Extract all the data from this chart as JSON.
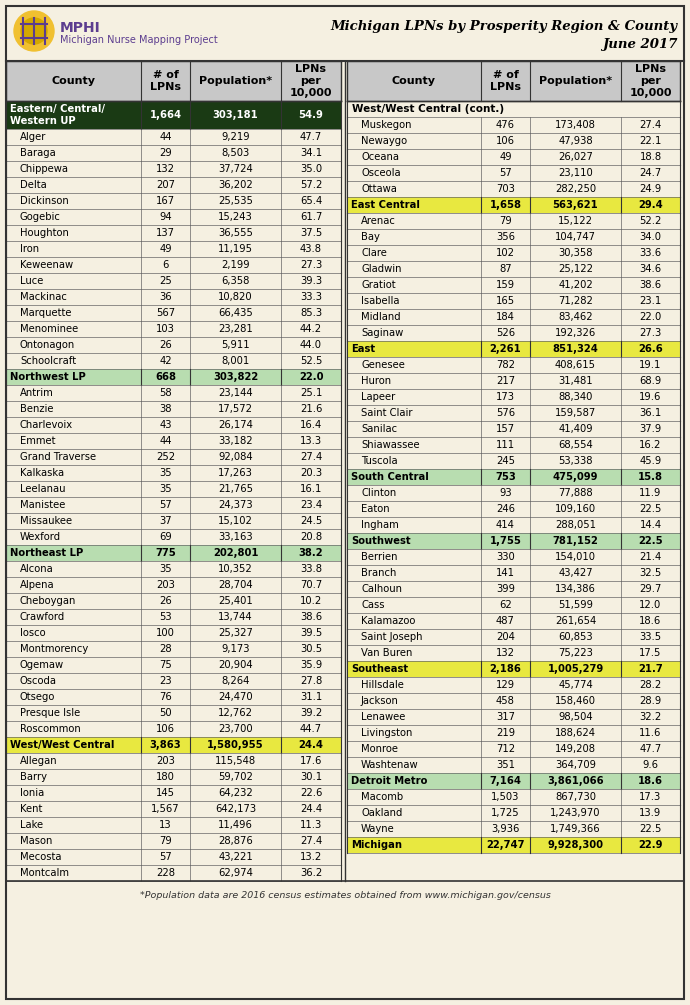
{
  "title_line1": "Michigan LPNs by Prosperity Region & County",
  "title_line2": "June 2017",
  "footer": "*Population data are 2016 census estimates obtained from www.michigan.gov/census",
  "bg_color": "#f5f0e1",
  "header_bg": "#c0c0c0",
  "dark_green": "#1a3a14",
  "light_green": "#b8ddb0",
  "yellow": "#e8e840",
  "col_header_bg": "#c8c8c8",
  "left_rows": [
    {
      "type": "region",
      "style": "dark_green",
      "county": "Eastern/ Central/\nWestern UP",
      "lpns": "1,664",
      "pop": "303,181",
      "per10k": "54.9",
      "tall": true
    },
    {
      "type": "county",
      "county": "Alger",
      "lpns": "44",
      "pop": "9,219",
      "per10k": "47.7"
    },
    {
      "type": "county",
      "county": "Baraga",
      "lpns": "29",
      "pop": "8,503",
      "per10k": "34.1"
    },
    {
      "type": "county",
      "county": "Chippewa",
      "lpns": "132",
      "pop": "37,724",
      "per10k": "35.0"
    },
    {
      "type": "county",
      "county": "Delta",
      "lpns": "207",
      "pop": "36,202",
      "per10k": "57.2"
    },
    {
      "type": "county",
      "county": "Dickinson",
      "lpns": "167",
      "pop": "25,535",
      "per10k": "65.4"
    },
    {
      "type": "county",
      "county": "Gogebic",
      "lpns": "94",
      "pop": "15,243",
      "per10k": "61.7"
    },
    {
      "type": "county",
      "county": "Houghton",
      "lpns": "137",
      "pop": "36,555",
      "per10k": "37.5"
    },
    {
      "type": "county",
      "county": "Iron",
      "lpns": "49",
      "pop": "11,195",
      "per10k": "43.8"
    },
    {
      "type": "county",
      "county": "Keweenaw",
      "lpns": "6",
      "pop": "2,199",
      "per10k": "27.3"
    },
    {
      "type": "county",
      "county": "Luce",
      "lpns": "25",
      "pop": "6,358",
      "per10k": "39.3"
    },
    {
      "type": "county",
      "county": "Mackinac",
      "lpns": "36",
      "pop": "10,820",
      "per10k": "33.3"
    },
    {
      "type": "county",
      "county": "Marquette",
      "lpns": "567",
      "pop": "66,435",
      "per10k": "85.3"
    },
    {
      "type": "county",
      "county": "Menominee",
      "lpns": "103",
      "pop": "23,281",
      "per10k": "44.2"
    },
    {
      "type": "county",
      "county": "Ontonagon",
      "lpns": "26",
      "pop": "5,911",
      "per10k": "44.0"
    },
    {
      "type": "county",
      "county": "Schoolcraft",
      "lpns": "42",
      "pop": "8,001",
      "per10k": "52.5"
    },
    {
      "type": "region",
      "style": "light_green",
      "county": "Northwest LP",
      "lpns": "668",
      "pop": "303,822",
      "per10k": "22.0"
    },
    {
      "type": "county",
      "county": "Antrim",
      "lpns": "58",
      "pop": "23,144",
      "per10k": "25.1"
    },
    {
      "type": "county",
      "county": "Benzie",
      "lpns": "38",
      "pop": "17,572",
      "per10k": "21.6"
    },
    {
      "type": "county",
      "county": "Charlevoix",
      "lpns": "43",
      "pop": "26,174",
      "per10k": "16.4"
    },
    {
      "type": "county",
      "county": "Emmet",
      "lpns": "44",
      "pop": "33,182",
      "per10k": "13.3"
    },
    {
      "type": "county",
      "county": "Grand Traverse",
      "lpns": "252",
      "pop": "92,084",
      "per10k": "27.4"
    },
    {
      "type": "county",
      "county": "Kalkaska",
      "lpns": "35",
      "pop": "17,263",
      "per10k": "20.3"
    },
    {
      "type": "county",
      "county": "Leelanau",
      "lpns": "35",
      "pop": "21,765",
      "per10k": "16.1"
    },
    {
      "type": "county",
      "county": "Manistee",
      "lpns": "57",
      "pop": "24,373",
      "per10k": "23.4"
    },
    {
      "type": "county",
      "county": "Missaukee",
      "lpns": "37",
      "pop": "15,102",
      "per10k": "24.5"
    },
    {
      "type": "county",
      "county": "Wexford",
      "lpns": "69",
      "pop": "33,163",
      "per10k": "20.8"
    },
    {
      "type": "region",
      "style": "light_green",
      "county": "Northeast LP",
      "lpns": "775",
      "pop": "202,801",
      "per10k": "38.2"
    },
    {
      "type": "county",
      "county": "Alcona",
      "lpns": "35",
      "pop": "10,352",
      "per10k": "33.8"
    },
    {
      "type": "county",
      "county": "Alpena",
      "lpns": "203",
      "pop": "28,704",
      "per10k": "70.7"
    },
    {
      "type": "county",
      "county": "Cheboygan",
      "lpns": "26",
      "pop": "25,401",
      "per10k": "10.2"
    },
    {
      "type": "county",
      "county": "Crawford",
      "lpns": "53",
      "pop": "13,744",
      "per10k": "38.6"
    },
    {
      "type": "county",
      "county": "Iosco",
      "lpns": "100",
      "pop": "25,327",
      "per10k": "39.5"
    },
    {
      "type": "county",
      "county": "Montmorency",
      "lpns": "28",
      "pop": "9,173",
      "per10k": "30.5"
    },
    {
      "type": "county",
      "county": "Ogemaw",
      "lpns": "75",
      "pop": "20,904",
      "per10k": "35.9"
    },
    {
      "type": "county",
      "county": "Oscoda",
      "lpns": "23",
      "pop": "8,264",
      "per10k": "27.8"
    },
    {
      "type": "county",
      "county": "Otsego",
      "lpns": "76",
      "pop": "24,470",
      "per10k": "31.1"
    },
    {
      "type": "county",
      "county": "Presque Isle",
      "lpns": "50",
      "pop": "12,762",
      "per10k": "39.2"
    },
    {
      "type": "county",
      "county": "Roscommon",
      "lpns": "106",
      "pop": "23,700",
      "per10k": "44.7"
    },
    {
      "type": "region",
      "style": "yellow",
      "county": "West/West Central",
      "lpns": "3,863",
      "pop": "1,580,955",
      "per10k": "24.4"
    },
    {
      "type": "county",
      "county": "Allegan",
      "lpns": "203",
      "pop": "115,548",
      "per10k": "17.6"
    },
    {
      "type": "county",
      "county": "Barry",
      "lpns": "180",
      "pop": "59,702",
      "per10k": "30.1"
    },
    {
      "type": "county",
      "county": "Ionia",
      "lpns": "145",
      "pop": "64,232",
      "per10k": "22.6"
    },
    {
      "type": "county",
      "county": "Kent",
      "lpns": "1,567",
      "pop": "642,173",
      "per10k": "24.4"
    },
    {
      "type": "county",
      "county": "Lake",
      "lpns": "13",
      "pop": "11,496",
      "per10k": "11.3"
    },
    {
      "type": "county",
      "county": "Mason",
      "lpns": "79",
      "pop": "28,876",
      "per10k": "27.4"
    },
    {
      "type": "county",
      "county": "Mecosta",
      "lpns": "57",
      "pop": "43,221",
      "per10k": "13.2"
    },
    {
      "type": "county",
      "county": "Montcalm",
      "lpns": "228",
      "pop": "62,974",
      "per10k": "36.2"
    }
  ],
  "right_rows": [
    {
      "type": "subheader",
      "county": "West/West Central (cont.)",
      "lpns": "",
      "pop": "",
      "per10k": ""
    },
    {
      "type": "county",
      "county": "Muskegon",
      "lpns": "476",
      "pop": "173,408",
      "per10k": "27.4"
    },
    {
      "type": "county",
      "county": "Newaygo",
      "lpns": "106",
      "pop": "47,938",
      "per10k": "22.1"
    },
    {
      "type": "county",
      "county": "Oceana",
      "lpns": "49",
      "pop": "26,027",
      "per10k": "18.8"
    },
    {
      "type": "county",
      "county": "Osceola",
      "lpns": "57",
      "pop": "23,110",
      "per10k": "24.7"
    },
    {
      "type": "county",
      "county": "Ottawa",
      "lpns": "703",
      "pop": "282,250",
      "per10k": "24.9"
    },
    {
      "type": "region",
      "style": "yellow",
      "county": "East Central",
      "lpns": "1,658",
      "pop": "563,621",
      "per10k": "29.4"
    },
    {
      "type": "county",
      "county": "Arenac",
      "lpns": "79",
      "pop": "15,122",
      "per10k": "52.2"
    },
    {
      "type": "county",
      "county": "Bay",
      "lpns": "356",
      "pop": "104,747",
      "per10k": "34.0"
    },
    {
      "type": "county",
      "county": "Clare",
      "lpns": "102",
      "pop": "30,358",
      "per10k": "33.6"
    },
    {
      "type": "county",
      "county": "Gladwin",
      "lpns": "87",
      "pop": "25,122",
      "per10k": "34.6"
    },
    {
      "type": "county",
      "county": "Gratiot",
      "lpns": "159",
      "pop": "41,202",
      "per10k": "38.6"
    },
    {
      "type": "county",
      "county": "Isabella",
      "lpns": "165",
      "pop": "71,282",
      "per10k": "23.1"
    },
    {
      "type": "county",
      "county": "Midland",
      "lpns": "184",
      "pop": "83,462",
      "per10k": "22.0"
    },
    {
      "type": "county",
      "county": "Saginaw",
      "lpns": "526",
      "pop": "192,326",
      "per10k": "27.3"
    },
    {
      "type": "region",
      "style": "yellow",
      "county": "East",
      "lpns": "2,261",
      "pop": "851,324",
      "per10k": "26.6"
    },
    {
      "type": "county",
      "county": "Genesee",
      "lpns": "782",
      "pop": "408,615",
      "per10k": "19.1"
    },
    {
      "type": "county",
      "county": "Huron",
      "lpns": "217",
      "pop": "31,481",
      "per10k": "68.9"
    },
    {
      "type": "county",
      "county": "Lapeer",
      "lpns": "173",
      "pop": "88,340",
      "per10k": "19.6"
    },
    {
      "type": "county",
      "county": "Saint Clair",
      "lpns": "576",
      "pop": "159,587",
      "per10k": "36.1"
    },
    {
      "type": "county",
      "county": "Sanilac",
      "lpns": "157",
      "pop": "41,409",
      "per10k": "37.9"
    },
    {
      "type": "county",
      "county": "Shiawassee",
      "lpns": "111",
      "pop": "68,554",
      "per10k": "16.2"
    },
    {
      "type": "county",
      "county": "Tuscola",
      "lpns": "245",
      "pop": "53,338",
      "per10k": "45.9"
    },
    {
      "type": "region",
      "style": "light_green",
      "county": "South Central",
      "lpns": "753",
      "pop": "475,099",
      "per10k": "15.8"
    },
    {
      "type": "county",
      "county": "Clinton",
      "lpns": "93",
      "pop": "77,888",
      "per10k": "11.9"
    },
    {
      "type": "county",
      "county": "Eaton",
      "lpns": "246",
      "pop": "109,160",
      "per10k": "22.5"
    },
    {
      "type": "county",
      "county": "Ingham",
      "lpns": "414",
      "pop": "288,051",
      "per10k": "14.4"
    },
    {
      "type": "region",
      "style": "light_green",
      "county": "Southwest",
      "lpns": "1,755",
      "pop": "781,152",
      "per10k": "22.5"
    },
    {
      "type": "county",
      "county": "Berrien",
      "lpns": "330",
      "pop": "154,010",
      "per10k": "21.4"
    },
    {
      "type": "county",
      "county": "Branch",
      "lpns": "141",
      "pop": "43,427",
      "per10k": "32.5"
    },
    {
      "type": "county",
      "county": "Calhoun",
      "lpns": "399",
      "pop": "134,386",
      "per10k": "29.7"
    },
    {
      "type": "county",
      "county": "Cass",
      "lpns": "62",
      "pop": "51,599",
      "per10k": "12.0"
    },
    {
      "type": "county",
      "county": "Kalamazoo",
      "lpns": "487",
      "pop": "261,654",
      "per10k": "18.6"
    },
    {
      "type": "county",
      "county": "Saint Joseph",
      "lpns": "204",
      "pop": "60,853",
      "per10k": "33.5"
    },
    {
      "type": "county",
      "county": "Van Buren",
      "lpns": "132",
      "pop": "75,223",
      "per10k": "17.5"
    },
    {
      "type": "region",
      "style": "yellow",
      "county": "Southeast",
      "lpns": "2,186",
      "pop": "1,005,279",
      "per10k": "21.7"
    },
    {
      "type": "county",
      "county": "Hillsdale",
      "lpns": "129",
      "pop": "45,774",
      "per10k": "28.2"
    },
    {
      "type": "county",
      "county": "Jackson",
      "lpns": "458",
      "pop": "158,460",
      "per10k": "28.9"
    },
    {
      "type": "county",
      "county": "Lenawee",
      "lpns": "317",
      "pop": "98,504",
      "per10k": "32.2"
    },
    {
      "type": "county",
      "county": "Livingston",
      "lpns": "219",
      "pop": "188,624",
      "per10k": "11.6"
    },
    {
      "type": "county",
      "county": "Monroe",
      "lpns": "712",
      "pop": "149,208",
      "per10k": "47.7"
    },
    {
      "type": "county",
      "county": "Washtenaw",
      "lpns": "351",
      "pop": "364,709",
      "per10k": "9.6"
    },
    {
      "type": "region",
      "style": "light_green",
      "county": "Detroit Metro",
      "lpns": "7,164",
      "pop": "3,861,066",
      "per10k": "18.6"
    },
    {
      "type": "county",
      "county": "Macomb",
      "lpns": "1,503",
      "pop": "867,730",
      "per10k": "17.3"
    },
    {
      "type": "county",
      "county": "Oakland",
      "lpns": "1,725",
      "pop": "1,243,970",
      "per10k": "13.9"
    },
    {
      "type": "county",
      "county": "Wayne",
      "lpns": "3,936",
      "pop": "1,749,366",
      "per10k": "22.5"
    },
    {
      "type": "total",
      "county": "Michigan",
      "lpns": "22,747",
      "pop": "9,928,300",
      "per10k": "22.9"
    }
  ]
}
